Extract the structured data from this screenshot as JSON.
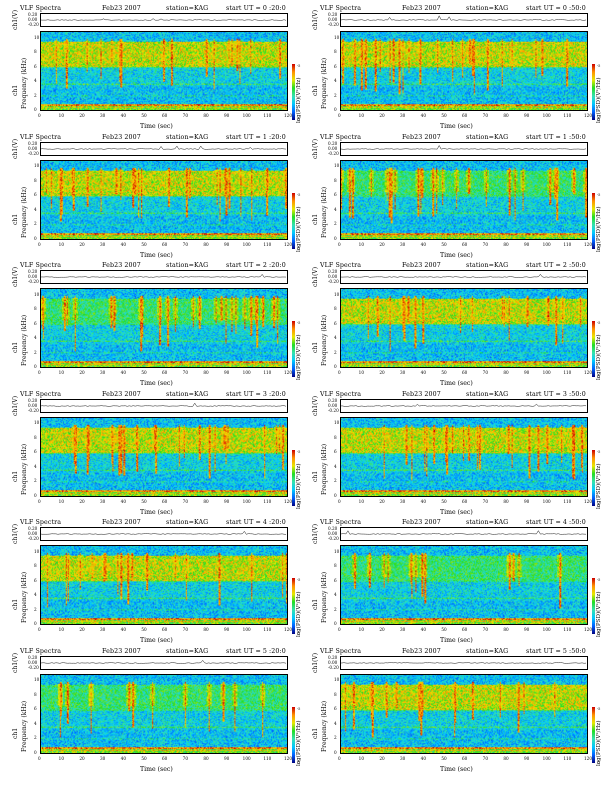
{
  "header": {
    "title": "VLF Spectra",
    "station": "station=KAG",
    "ut_label": "start  UT ="
  },
  "axes": {
    "xlabel": "Time  (sec)",
    "ylabel_top": "ch1(V)",
    "ylabel_spec_1": "ch1",
    "ylabel_spec_2": "Frequency  (kHz)",
    "colorbar_label": "log(PSD)(V²/Hz)",
    "x_ticks": [
      "0",
      "10",
      "20",
      "30",
      "40",
      "50",
      "60",
      "70",
      "80",
      "90",
      "100",
      "110",
      "120"
    ],
    "y_ticks_freq": [
      "0",
      "2",
      "4",
      "6",
      "8",
      "10"
    ],
    "y_ticks_line": [
      "0.20",
      "0.00",
      "-0.20"
    ],
    "colorbar_ticks": [
      "-5",
      "-7"
    ]
  },
  "chart_data": {
    "type": "heatmap",
    "panels": [
      {
        "date": "Feb23 2007",
        "ut": "0 :20:0"
      },
      {
        "date": "Feb23 2007",
        "ut": "0 :50:0"
      },
      {
        "date": "Feb23 2007",
        "ut": "1 :20:0"
      },
      {
        "date": "Feb23 2007",
        "ut": "1 :50:0"
      },
      {
        "date": "Feb23 2007",
        "ut": "2 :20:0"
      },
      {
        "date": "Feb23 2007",
        "ut": "2 :50:0"
      },
      {
        "date": "Feb23 2007",
        "ut": "3 :20:0"
      },
      {
        "date": "Feb23 2007",
        "ut": "3 :50:0"
      },
      {
        "date": "Feb23 2007",
        "ut": "4 :20:0"
      },
      {
        "date": "Feb23 2007",
        "ut": "4 :50:0"
      },
      {
        "date": "Feb23 2007",
        "ut": "5 :20:0"
      },
      {
        "date": "Feb23 2007",
        "ut": "5 :50:0"
      }
    ],
    "x_range": [
      0,
      120
    ],
    "y_range_khz": [
      0,
      11
    ],
    "line_range_v": [
      -0.2,
      0.2
    ],
    "colormap": [
      "#00007f",
      "#0060ff",
      "#00c8ff",
      "#33e0b0",
      "#22dd22",
      "#e8e800",
      "#ff9000",
      "#cc0000"
    ],
    "grid": false
  }
}
